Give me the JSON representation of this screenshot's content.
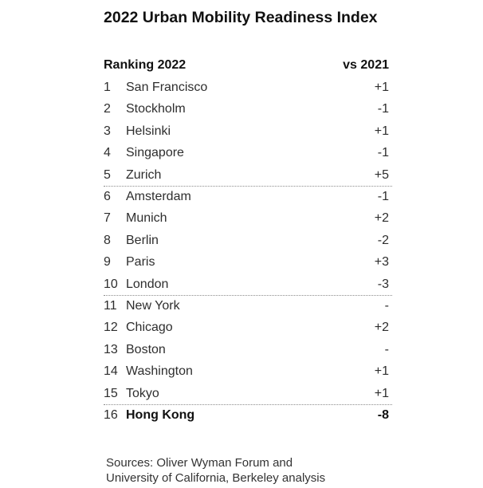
{
  "chart_data": {
    "type": "table",
    "title": "2022 Urban Mobility Readiness Index",
    "columns": [
      "Ranking 2022",
      "vs 2021"
    ],
    "rows": [
      {
        "rank": 1,
        "city": "San Francisco",
        "change": "+1"
      },
      {
        "rank": 2,
        "city": "Stockholm",
        "change": "-1"
      },
      {
        "rank": 3,
        "city": "Helsinki",
        "change": "+1"
      },
      {
        "rank": 4,
        "city": "Singapore",
        "change": "-1"
      },
      {
        "rank": 5,
        "city": "Zurich",
        "change": "+5"
      },
      {
        "rank": 6,
        "city": "Amsterdam",
        "change": "-1"
      },
      {
        "rank": 7,
        "city": "Munich",
        "change": "+2"
      },
      {
        "rank": 8,
        "city": "Berlin",
        "change": "-2"
      },
      {
        "rank": 9,
        "city": "Paris",
        "change": "+3"
      },
      {
        "rank": 10,
        "city": "London",
        "change": "-3"
      },
      {
        "rank": 11,
        "city": "New York",
        "change": "-"
      },
      {
        "rank": 12,
        "city": "Chicago",
        "change": "+2"
      },
      {
        "rank": 13,
        "city": "Boston",
        "change": "-"
      },
      {
        "rank": 14,
        "city": "Washington",
        "change": "+1"
      },
      {
        "rank": 15,
        "city": "Tokyo",
        "change": "+1"
      },
      {
        "rank": 16,
        "city": "Hong Kong",
        "change": "-8",
        "highlighted": true
      }
    ]
  },
  "sources": [
    "Sources: Oliver Wyman Forum and",
    "University of California, Berkeley analysis"
  ]
}
